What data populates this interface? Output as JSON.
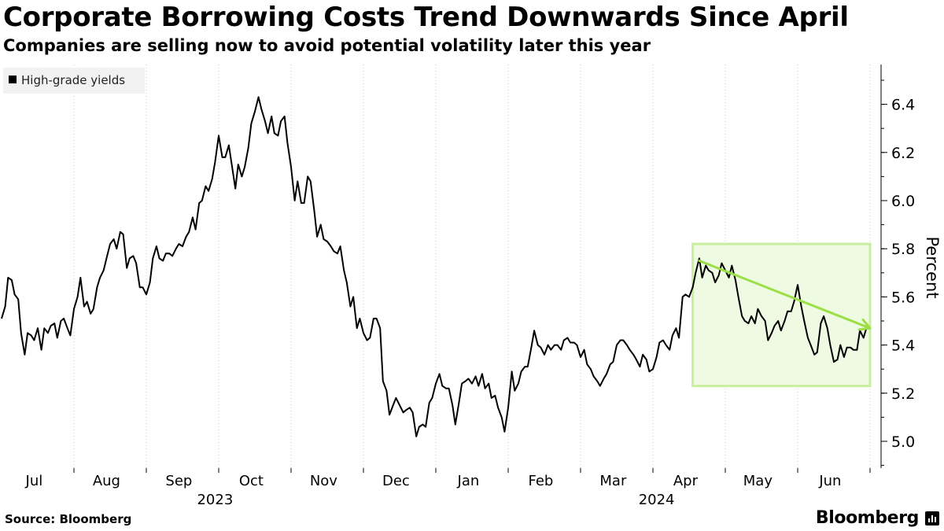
{
  "title": "Corporate Borrowing Costs Trend Downwards Since April",
  "subtitle": "Companies are selling now to avoid potential volatility later this year",
  "source": "Source: Bloomberg",
  "brand": "Bloomberg",
  "colors": {
    "line": "#000000",
    "highlight_fill": "#eefbe2",
    "highlight_stroke": "#c8ee9e",
    "arrow": "#9bdf45",
    "grid": "#c8c8c8",
    "legend_bg": "#f2f2f2"
  },
  "chart_data": {
    "type": "line",
    "title": "Corporate Borrowing Costs Trend Downwards Since April",
    "ylabel": "Percent",
    "xlabel": "",
    "ylim": [
      4.9,
      6.5
    ],
    "xlim": [
      0,
      12.45
    ],
    "yticks": [
      5.0,
      5.2,
      5.4,
      5.6,
      5.8,
      6.0,
      6.2,
      6.4
    ],
    "ytick_labels": [
      "5.0",
      "5.2",
      "5.4",
      "5.6",
      "5.8",
      "6.0",
      "6.2",
      "6.4"
    ],
    "x_month_labels": [
      "Jul",
      "Aug",
      "Sep",
      "Oct",
      "Nov",
      "Dec",
      "Jan",
      "Feb",
      "Mar",
      "Apr",
      "May",
      "Jun"
    ],
    "x_month_positions": [
      0.45,
      1.45,
      2.45,
      3.45,
      4.45,
      5.45,
      6.45,
      7.45,
      8.45,
      9.45,
      10.45,
      11.45
    ],
    "x_year_labels": [
      {
        "label": "2023",
        "at": 2.95
      },
      {
        "label": "2024",
        "at": 9.05
      }
    ],
    "legend": [
      "High-grade yields"
    ],
    "series": [
      {
        "name": "High-grade yields",
        "points": [
          [
            0.0,
            5.51
          ],
          [
            0.05,
            5.56
          ],
          [
            0.09,
            5.68
          ],
          [
            0.14,
            5.67
          ],
          [
            0.18,
            5.61
          ],
          [
            0.23,
            5.59
          ],
          [
            0.27,
            5.45
          ],
          [
            0.32,
            5.36
          ],
          [
            0.36,
            5.45
          ],
          [
            0.41,
            5.44
          ],
          [
            0.45,
            5.42
          ],
          [
            0.5,
            5.47
          ],
          [
            0.55,
            5.38
          ],
          [
            0.59,
            5.47
          ],
          [
            0.64,
            5.45
          ],
          [
            0.68,
            5.48
          ],
          [
            0.73,
            5.49
          ],
          [
            0.77,
            5.43
          ],
          [
            0.82,
            5.5
          ],
          [
            0.86,
            5.51
          ],
          [
            0.91,
            5.47
          ],
          [
            0.95,
            5.44
          ],
          [
            1.0,
            5.55
          ],
          [
            1.05,
            5.6
          ],
          [
            1.09,
            5.68
          ],
          [
            1.14,
            5.56
          ],
          [
            1.18,
            5.58
          ],
          [
            1.23,
            5.53
          ],
          [
            1.27,
            5.55
          ],
          [
            1.32,
            5.64
          ],
          [
            1.36,
            5.68
          ],
          [
            1.41,
            5.71
          ],
          [
            1.45,
            5.76
          ],
          [
            1.5,
            5.82
          ],
          [
            1.55,
            5.84
          ],
          [
            1.59,
            5.8
          ],
          [
            1.64,
            5.87
          ],
          [
            1.68,
            5.86
          ],
          [
            1.73,
            5.72
          ],
          [
            1.77,
            5.76
          ],
          [
            1.82,
            5.77
          ],
          [
            1.86,
            5.74
          ],
          [
            1.91,
            5.64
          ],
          [
            1.95,
            5.64
          ],
          [
            2.0,
            5.61
          ],
          [
            2.05,
            5.66
          ],
          [
            2.09,
            5.76
          ],
          [
            2.14,
            5.81
          ],
          [
            2.18,
            5.76
          ],
          [
            2.23,
            5.75
          ],
          [
            2.27,
            5.78
          ],
          [
            2.32,
            5.78
          ],
          [
            2.36,
            5.77
          ],
          [
            2.41,
            5.8
          ],
          [
            2.45,
            5.82
          ],
          [
            2.5,
            5.81
          ],
          [
            2.55,
            5.85
          ],
          [
            2.59,
            5.87
          ],
          [
            2.64,
            5.93
          ],
          [
            2.68,
            5.88
          ],
          [
            2.73,
            5.99
          ],
          [
            2.77,
            6.0
          ],
          [
            2.82,
            6.06
          ],
          [
            2.86,
            6.04
          ],
          [
            2.91,
            6.09
          ],
          [
            2.95,
            6.16
          ],
          [
            3.0,
            6.27
          ],
          [
            3.05,
            6.18
          ],
          [
            3.09,
            6.18
          ],
          [
            3.14,
            6.23
          ],
          [
            3.18,
            6.15
          ],
          [
            3.23,
            6.05
          ],
          [
            3.27,
            6.15
          ],
          [
            3.32,
            6.1
          ],
          [
            3.36,
            6.14
          ],
          [
            3.41,
            6.22
          ],
          [
            3.45,
            6.32
          ],
          [
            3.5,
            6.37
          ],
          [
            3.55,
            6.43
          ],
          [
            3.59,
            6.38
          ],
          [
            3.64,
            6.33
          ],
          [
            3.68,
            6.28
          ],
          [
            3.73,
            6.35
          ],
          [
            3.77,
            6.28
          ],
          [
            3.82,
            6.27
          ],
          [
            3.86,
            6.33
          ],
          [
            3.91,
            6.35
          ],
          [
            3.95,
            6.24
          ],
          [
            4.0,
            6.14
          ],
          [
            4.05,
            6.0
          ],
          [
            4.09,
            6.08
          ],
          [
            4.14,
            5.99
          ],
          [
            4.18,
            5.99
          ],
          [
            4.23,
            6.1
          ],
          [
            4.27,
            6.08
          ],
          [
            4.32,
            5.96
          ],
          [
            4.36,
            5.85
          ],
          [
            4.41,
            5.9
          ],
          [
            4.45,
            5.84
          ],
          [
            4.5,
            5.83
          ],
          [
            4.55,
            5.81
          ],
          [
            4.59,
            5.79
          ],
          [
            4.64,
            5.78
          ],
          [
            4.68,
            5.81
          ],
          [
            4.73,
            5.71
          ],
          [
            4.77,
            5.66
          ],
          [
            4.82,
            5.56
          ],
          [
            4.86,
            5.6
          ],
          [
            4.91,
            5.47
          ],
          [
            4.95,
            5.51
          ],
          [
            5.0,
            5.45
          ],
          [
            5.05,
            5.42
          ],
          [
            5.09,
            5.43
          ],
          [
            5.14,
            5.51
          ],
          [
            5.18,
            5.51
          ],
          [
            5.23,
            5.47
          ],
          [
            5.27,
            5.25
          ],
          [
            5.32,
            5.21
          ],
          [
            5.36,
            5.11
          ],
          [
            5.41,
            5.15
          ],
          [
            5.45,
            5.18
          ],
          [
            5.5,
            5.15
          ],
          [
            5.55,
            5.12
          ],
          [
            5.59,
            5.13
          ],
          [
            5.64,
            5.14
          ],
          [
            5.68,
            5.12
          ],
          [
            5.73,
            5.02
          ],
          [
            5.77,
            5.06
          ],
          [
            5.82,
            5.07
          ],
          [
            5.86,
            5.06
          ],
          [
            5.91,
            5.16
          ],
          [
            5.95,
            5.18
          ],
          [
            6.0,
            5.24
          ],
          [
            6.05,
            5.28
          ],
          [
            6.09,
            5.23
          ],
          [
            6.14,
            5.22
          ],
          [
            6.18,
            5.22
          ],
          [
            6.23,
            5.15
          ],
          [
            6.27,
            5.07
          ],
          [
            6.32,
            5.16
          ],
          [
            6.36,
            5.24
          ],
          [
            6.41,
            5.25
          ],
          [
            6.45,
            5.26
          ],
          [
            6.5,
            5.24
          ],
          [
            6.55,
            5.27
          ],
          [
            6.59,
            5.23
          ],
          [
            6.64,
            5.28
          ],
          [
            6.68,
            5.22
          ],
          [
            6.73,
            5.24
          ],
          [
            6.77,
            5.18
          ],
          [
            6.82,
            5.19
          ],
          [
            6.86,
            5.14
          ],
          [
            6.91,
            5.1
          ],
          [
            6.95,
            5.04
          ],
          [
            7.0,
            5.14
          ],
          [
            7.05,
            5.29
          ],
          [
            7.09,
            5.21
          ],
          [
            7.14,
            5.24
          ],
          [
            7.18,
            5.29
          ],
          [
            7.23,
            5.31
          ],
          [
            7.27,
            5.31
          ],
          [
            7.32,
            5.39
          ],
          [
            7.36,
            5.46
          ],
          [
            7.41,
            5.4
          ],
          [
            7.45,
            5.39
          ],
          [
            7.5,
            5.36
          ],
          [
            7.55,
            5.4
          ],
          [
            7.59,
            5.38
          ],
          [
            7.64,
            5.4
          ],
          [
            7.68,
            5.4
          ],
          [
            7.73,
            5.38
          ],
          [
            7.77,
            5.42
          ],
          [
            7.82,
            5.43
          ],
          [
            7.86,
            5.41
          ],
          [
            7.91,
            5.41
          ],
          [
            7.95,
            5.4
          ],
          [
            8.0,
            5.35
          ],
          [
            8.05,
            5.38
          ],
          [
            8.09,
            5.32
          ],
          [
            8.14,
            5.3
          ],
          [
            8.18,
            5.27
          ],
          [
            8.23,
            5.25
          ],
          [
            8.27,
            5.23
          ],
          [
            8.32,
            5.26
          ],
          [
            8.36,
            5.28
          ],
          [
            8.41,
            5.32
          ],
          [
            8.45,
            5.33
          ],
          [
            8.5,
            5.4
          ],
          [
            8.55,
            5.42
          ],
          [
            8.59,
            5.42
          ],
          [
            8.64,
            5.4
          ],
          [
            8.68,
            5.38
          ],
          [
            8.73,
            5.36
          ],
          [
            8.77,
            5.34
          ],
          [
            8.82,
            5.31
          ],
          [
            8.86,
            5.36
          ],
          [
            8.91,
            5.34
          ],
          [
            8.95,
            5.29
          ],
          [
            9.0,
            5.3
          ],
          [
            9.05,
            5.35
          ],
          [
            9.09,
            5.41
          ],
          [
            9.14,
            5.42
          ],
          [
            9.18,
            5.4
          ],
          [
            9.23,
            5.38
          ],
          [
            9.27,
            5.44
          ],
          [
            9.32,
            5.47
          ],
          [
            9.36,
            5.43
          ],
          [
            9.41,
            5.6
          ],
          [
            9.45,
            5.61
          ],
          [
            9.5,
            5.6
          ],
          [
            9.55,
            5.64
          ],
          [
            9.59,
            5.7
          ],
          [
            9.64,
            5.76
          ],
          [
            9.68,
            5.68
          ],
          [
            9.73,
            5.73
          ],
          [
            9.77,
            5.71
          ],
          [
            9.82,
            5.7
          ],
          [
            9.86,
            5.66
          ],
          [
            9.91,
            5.69
          ],
          [
            9.95,
            5.74
          ],
          [
            10.0,
            5.71
          ],
          [
            10.05,
            5.68
          ],
          [
            10.09,
            5.73
          ],
          [
            10.14,
            5.67
          ],
          [
            10.18,
            5.6
          ],
          [
            10.23,
            5.52
          ],
          [
            10.27,
            5.5
          ],
          [
            10.32,
            5.49
          ],
          [
            10.36,
            5.52
          ],
          [
            10.41,
            5.49
          ],
          [
            10.45,
            5.55
          ],
          [
            10.5,
            5.52
          ],
          [
            10.55,
            5.5
          ],
          [
            10.59,
            5.42
          ],
          [
            10.64,
            5.45
          ],
          [
            10.68,
            5.48
          ],
          [
            10.73,
            5.5
          ],
          [
            10.77,
            5.46
          ],
          [
            10.82,
            5.5
          ],
          [
            10.86,
            5.54
          ],
          [
            10.91,
            5.54
          ],
          [
            10.95,
            5.58
          ],
          [
            11.0,
            5.65
          ],
          [
            11.05,
            5.56
          ],
          [
            11.09,
            5.5
          ],
          [
            11.14,
            5.43
          ],
          [
            11.18,
            5.4
          ],
          [
            11.23,
            5.36
          ],
          [
            11.27,
            5.37
          ],
          [
            11.32,
            5.49
          ],
          [
            11.36,
            5.52
          ],
          [
            11.41,
            5.47
          ],
          [
            11.45,
            5.4
          ],
          [
            11.5,
            5.33
          ],
          [
            11.55,
            5.34
          ],
          [
            11.59,
            5.4
          ],
          [
            11.64,
            5.35
          ],
          [
            11.68,
            5.39
          ],
          [
            11.73,
            5.39
          ],
          [
            11.77,
            5.38
          ],
          [
            11.82,
            5.38
          ],
          [
            11.86,
            5.46
          ],
          [
            11.91,
            5.43
          ],
          [
            11.95,
            5.47
          ]
        ]
      }
    ],
    "annotations": [
      {
        "type": "highlight-box",
        "x_range": [
          9.55,
          12.0
        ],
        "y_range": [
          5.23,
          5.82
        ]
      },
      {
        "type": "trend-arrow",
        "from": [
          9.64,
          5.75
        ],
        "to": [
          12.0,
          5.47
        ]
      }
    ]
  }
}
